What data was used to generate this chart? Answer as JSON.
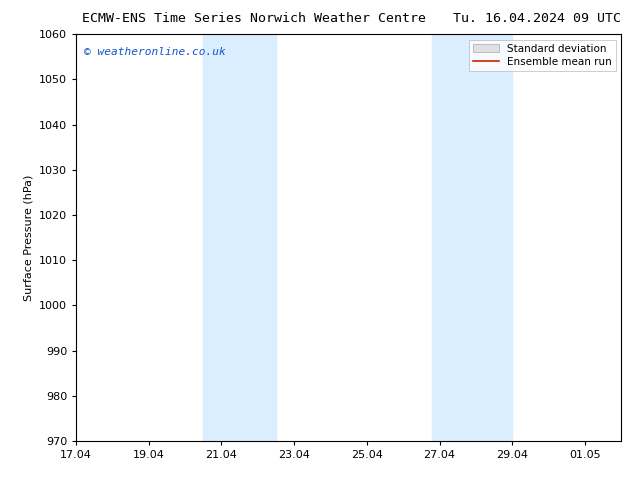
{
  "title_left": "ECMW-ENS Time Series Norwich Weather Centre",
  "title_right": "Tu. 16.04.2024 09 UTC",
  "ylabel": "Surface Pressure (hPa)",
  "ylim": [
    970,
    1060
  ],
  "yticks": [
    970,
    980,
    990,
    1000,
    1010,
    1020,
    1030,
    1040,
    1050,
    1060
  ],
  "xtick_labels": [
    "17.04",
    "19.04",
    "21.04",
    "23.04",
    "25.04",
    "27.04",
    "29.04",
    "01.05"
  ],
  "xtick_positions": [
    0,
    2,
    4,
    6,
    8,
    10,
    12,
    14
  ],
  "xlim": [
    0,
    15
  ],
  "shade_regions": [
    {
      "x_start": 3.5,
      "x_end": 5.5,
      "color": "#dbeeff"
    },
    {
      "x_start": 9.8,
      "x_end": 12.0,
      "color": "#dbeeff"
    }
  ],
  "watermark_text": "© weatheronline.co.uk",
  "watermark_color": "#1155cc",
  "legend_std_label": "Standard deviation",
  "legend_mean_label": "Ensemble mean run",
  "legend_std_facecolor": "#e0e0e0",
  "legend_std_edgecolor": "#aaaaaa",
  "legend_mean_color": "#cc2200",
  "background_color": "#ffffff",
  "spine_color": "#000000",
  "title_fontsize": 9.5,
  "axis_label_fontsize": 8,
  "tick_fontsize": 8,
  "watermark_fontsize": 8,
  "legend_fontsize": 7.5
}
